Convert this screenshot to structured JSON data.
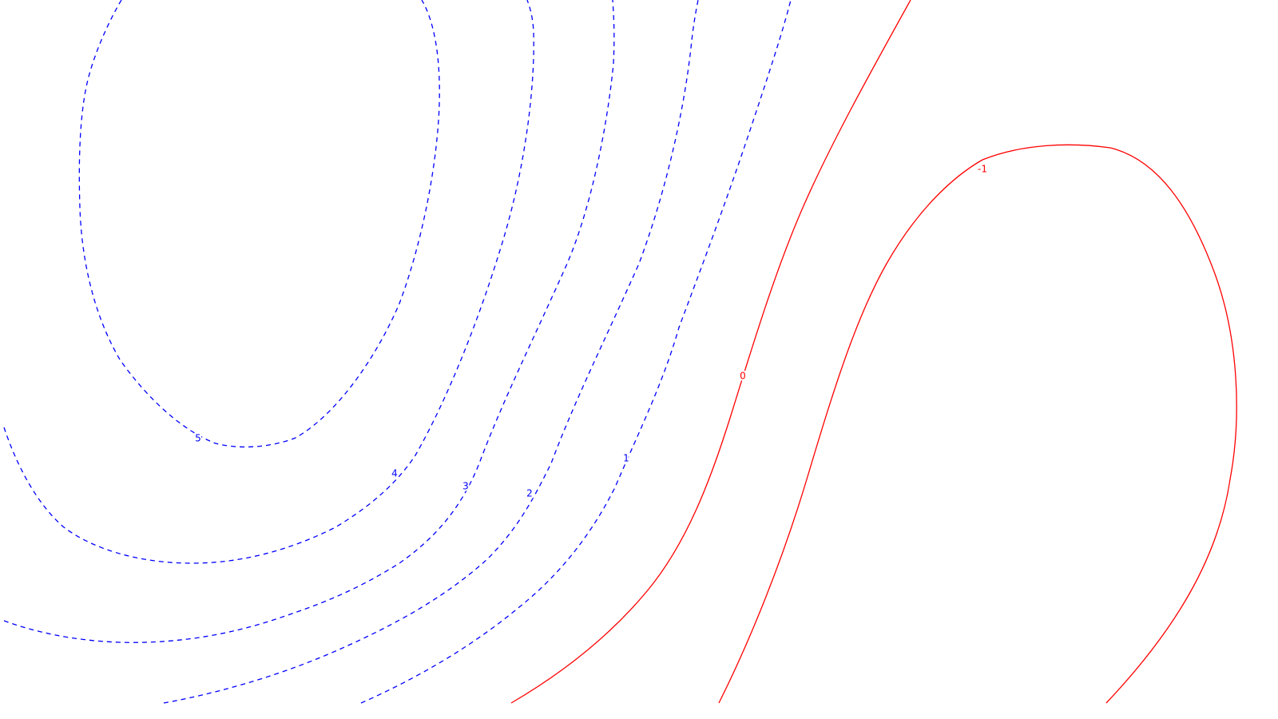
{
  "chart_data": {
    "type": "contour",
    "title": "",
    "xlabel": "",
    "ylabel": "",
    "grid": false,
    "legend": "none",
    "colors": {
      "positive": "#0000ff",
      "non_positive": "#ff0000"
    },
    "line_styles": {
      "positive": "dashed",
      "non_positive": "solid"
    },
    "levels": [
      {
        "value": 5,
        "label": "5"
      },
      {
        "value": 4,
        "label": "4"
      },
      {
        "value": 3,
        "label": "3"
      },
      {
        "value": 2,
        "label": "2"
      },
      {
        "value": 1,
        "label": "1"
      },
      {
        "value": 0,
        "label": "0"
      },
      {
        "value": -1,
        "label": "-1"
      }
    ]
  }
}
